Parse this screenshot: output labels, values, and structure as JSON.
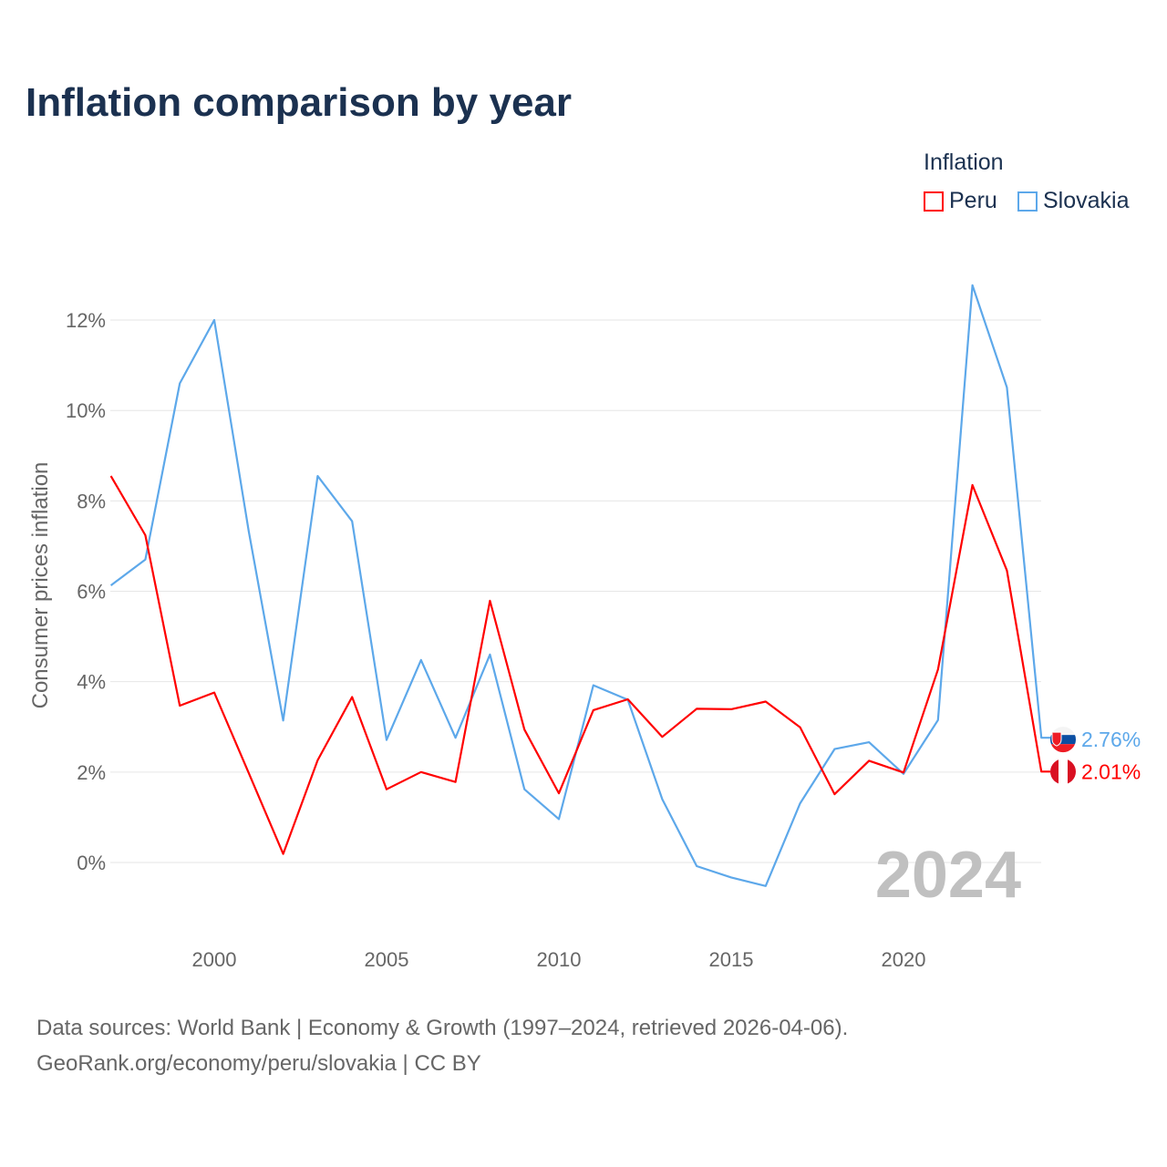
{
  "title": "Inflation comparison by year",
  "footer": {
    "line1": "Data sources: World Bank | Economy & Growth (1997–2024, retrieved 2026-04-06).",
    "line2": "GeoRank.org/economy/peru/slovakia | CC BY"
  },
  "chart_data": {
    "type": "line",
    "title": "Inflation comparison by year",
    "xlabel": "",
    "ylabel": "Consumer prices inflation",
    "legend_title": "Inflation",
    "legend_position": "top-right",
    "year_watermark": "2024",
    "ylim": [
      -1.5,
      13
    ],
    "yticks": [
      0,
      2,
      4,
      6,
      8,
      10,
      12
    ],
    "ytick_labels": [
      "0%",
      "2%",
      "4%",
      "6%",
      "8%",
      "10%",
      "12%"
    ],
    "xticks": [
      2000,
      2005,
      2010,
      2015,
      2020
    ],
    "xtick_labels": [
      "2000",
      "2005",
      "2010",
      "2015",
      "2020"
    ],
    "x": [
      1997,
      1998,
      1999,
      2000,
      2001,
      2002,
      2003,
      2004,
      2005,
      2006,
      2007,
      2008,
      2009,
      2010,
      2011,
      2012,
      2013,
      2014,
      2015,
      2016,
      2017,
      2018,
      2019,
      2020,
      2021,
      2022,
      2023,
      2024
    ],
    "series": [
      {
        "name": "Peru",
        "color": "#ff0000",
        "end_label": "2.01%",
        "values": [
          8.55,
          7.24,
          3.47,
          3.76,
          1.98,
          0.19,
          2.26,
          3.66,
          1.62,
          2.0,
          1.78,
          5.79,
          2.94,
          1.53,
          3.37,
          3.61,
          2.78,
          3.4,
          3.39,
          3.56,
          2.99,
          1.51,
          2.25,
          1.99,
          4.27,
          8.35,
          6.46,
          2.01
        ]
      },
      {
        "name": "Slovakia",
        "color": "#5da8ea",
        "end_label": "2.76%",
        "values": [
          6.13,
          6.7,
          10.6,
          12.0,
          7.33,
          3.14,
          8.55,
          7.55,
          2.71,
          4.48,
          2.76,
          4.6,
          1.62,
          0.96,
          3.92,
          3.6,
          1.4,
          -0.08,
          -0.33,
          -0.52,
          1.31,
          2.51,
          2.66,
          1.96,
          3.15,
          12.77,
          10.51,
          2.76
        ]
      }
    ]
  }
}
